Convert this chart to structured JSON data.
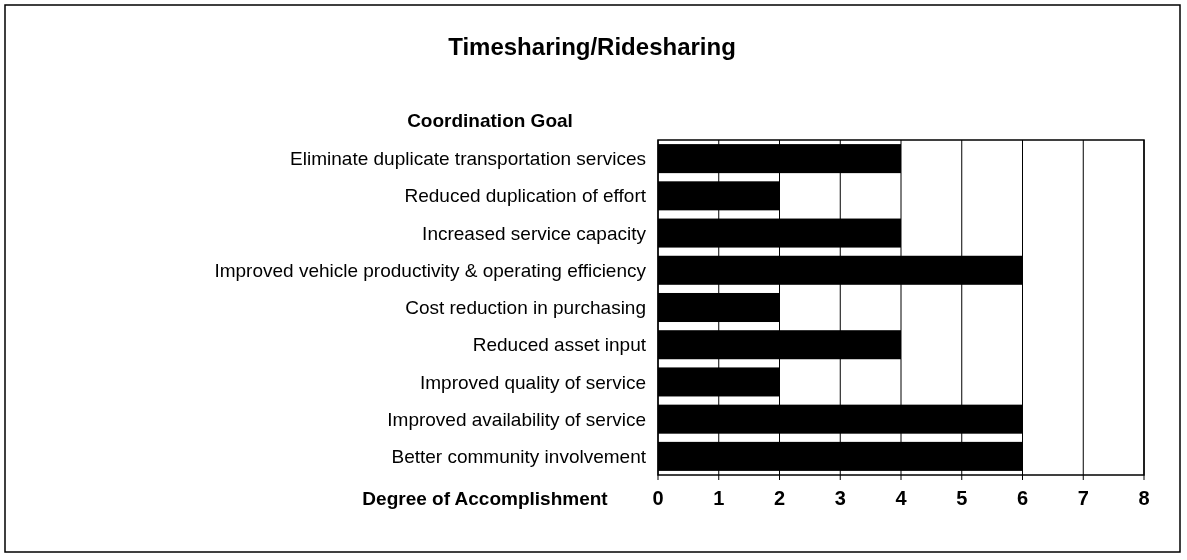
{
  "chart_data": {
    "type": "bar",
    "orientation": "horizontal",
    "title": "Timesharing/Ridesharing",
    "ylabel": "Coordination Goal",
    "xlabel": "Degree of Accomplishment",
    "categories": [
      "Eliminate duplicate transportation services",
      "Reduced duplication of effort",
      "Increased service capacity",
      "Improved vehicle productivity & operating efficiency",
      "Cost reduction in purchasing",
      "Reduced asset input",
      "Improved quality of service",
      "Improved availability of service",
      "Better community involvement"
    ],
    "values": [
      4,
      2,
      4,
      6,
      2,
      4,
      2,
      6,
      6
    ],
    "color": "#000000",
    "xlim": [
      0,
      8
    ],
    "xticks": [
      0,
      1,
      2,
      3,
      4,
      5,
      6,
      7,
      8
    ],
    "grid": "x"
  }
}
